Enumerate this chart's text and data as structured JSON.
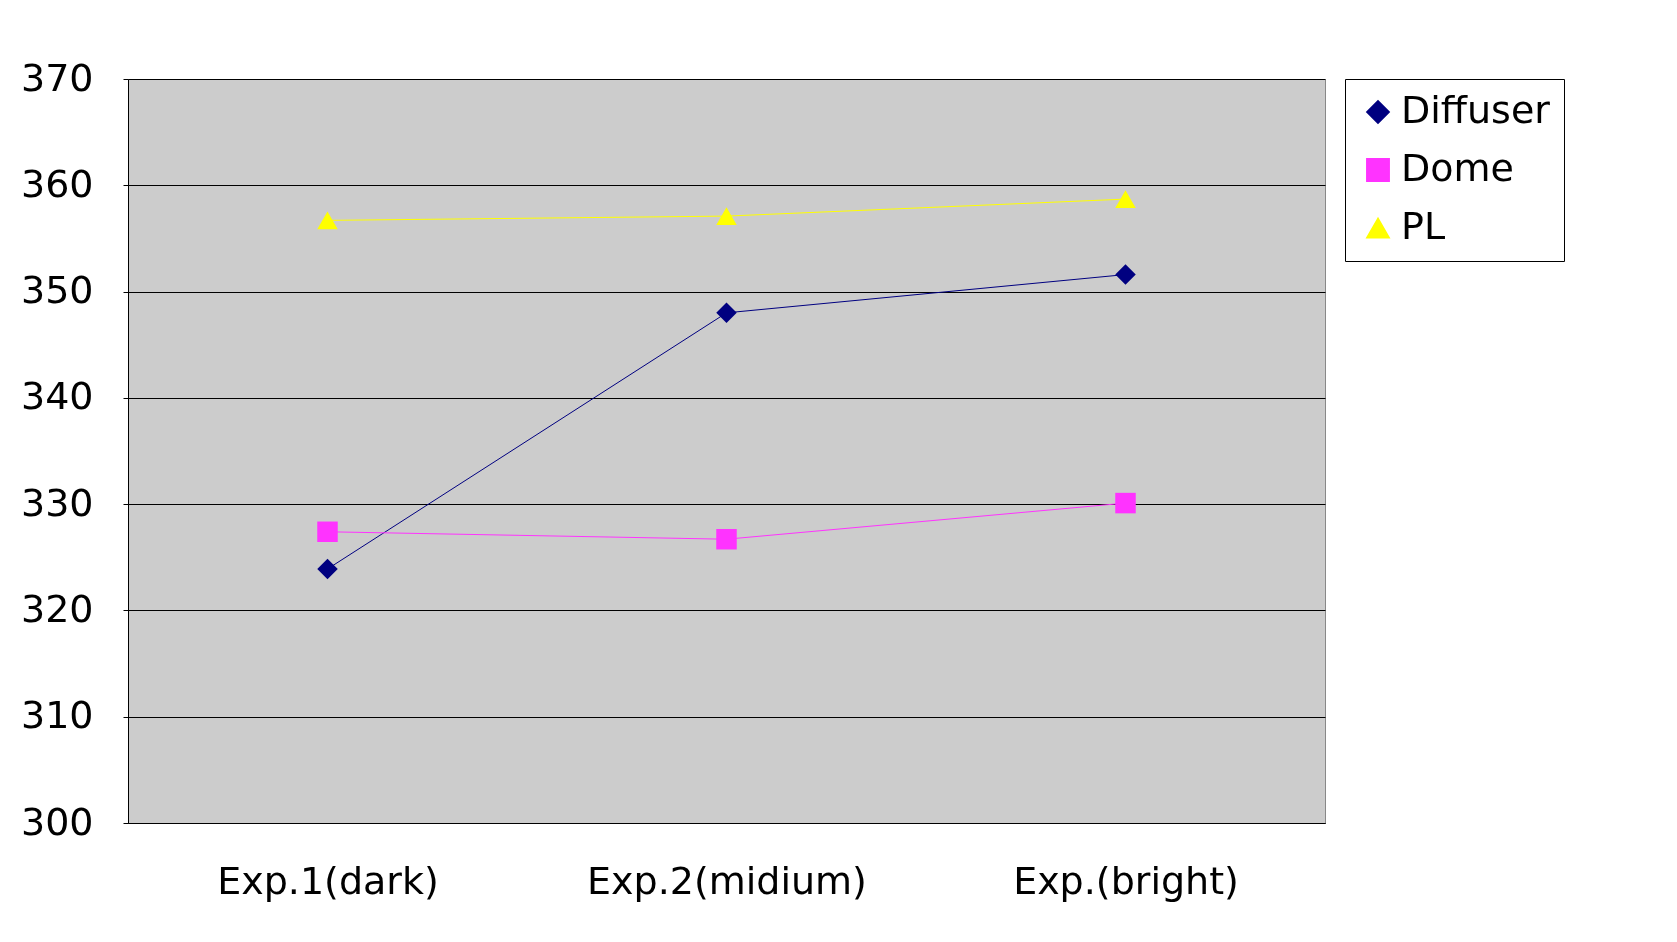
{
  "chart_data": {
    "type": "line",
    "categories": [
      "Exp.1(dark)",
      "Exp.2(midium)",
      "Exp.(bright)"
    ],
    "series": [
      {
        "name": "Diffuser",
        "color": "#000080",
        "marker": "diamond",
        "values": [
          323.9,
          348.0,
          351.6
        ]
      },
      {
        "name": "Dome",
        "color": "#ff33ff",
        "marker": "square",
        "values": [
          327.4,
          326.7,
          330.1
        ]
      },
      {
        "name": "PL",
        "color": "#ffff00",
        "marker": "triangle",
        "values": [
          356.7,
          357.1,
          358.7
        ]
      }
    ],
    "ylim": [
      300,
      370
    ],
    "yticks": [
      300,
      310,
      320,
      330,
      340,
      350,
      360,
      370
    ],
    "grid": "y",
    "legend": "right"
  }
}
